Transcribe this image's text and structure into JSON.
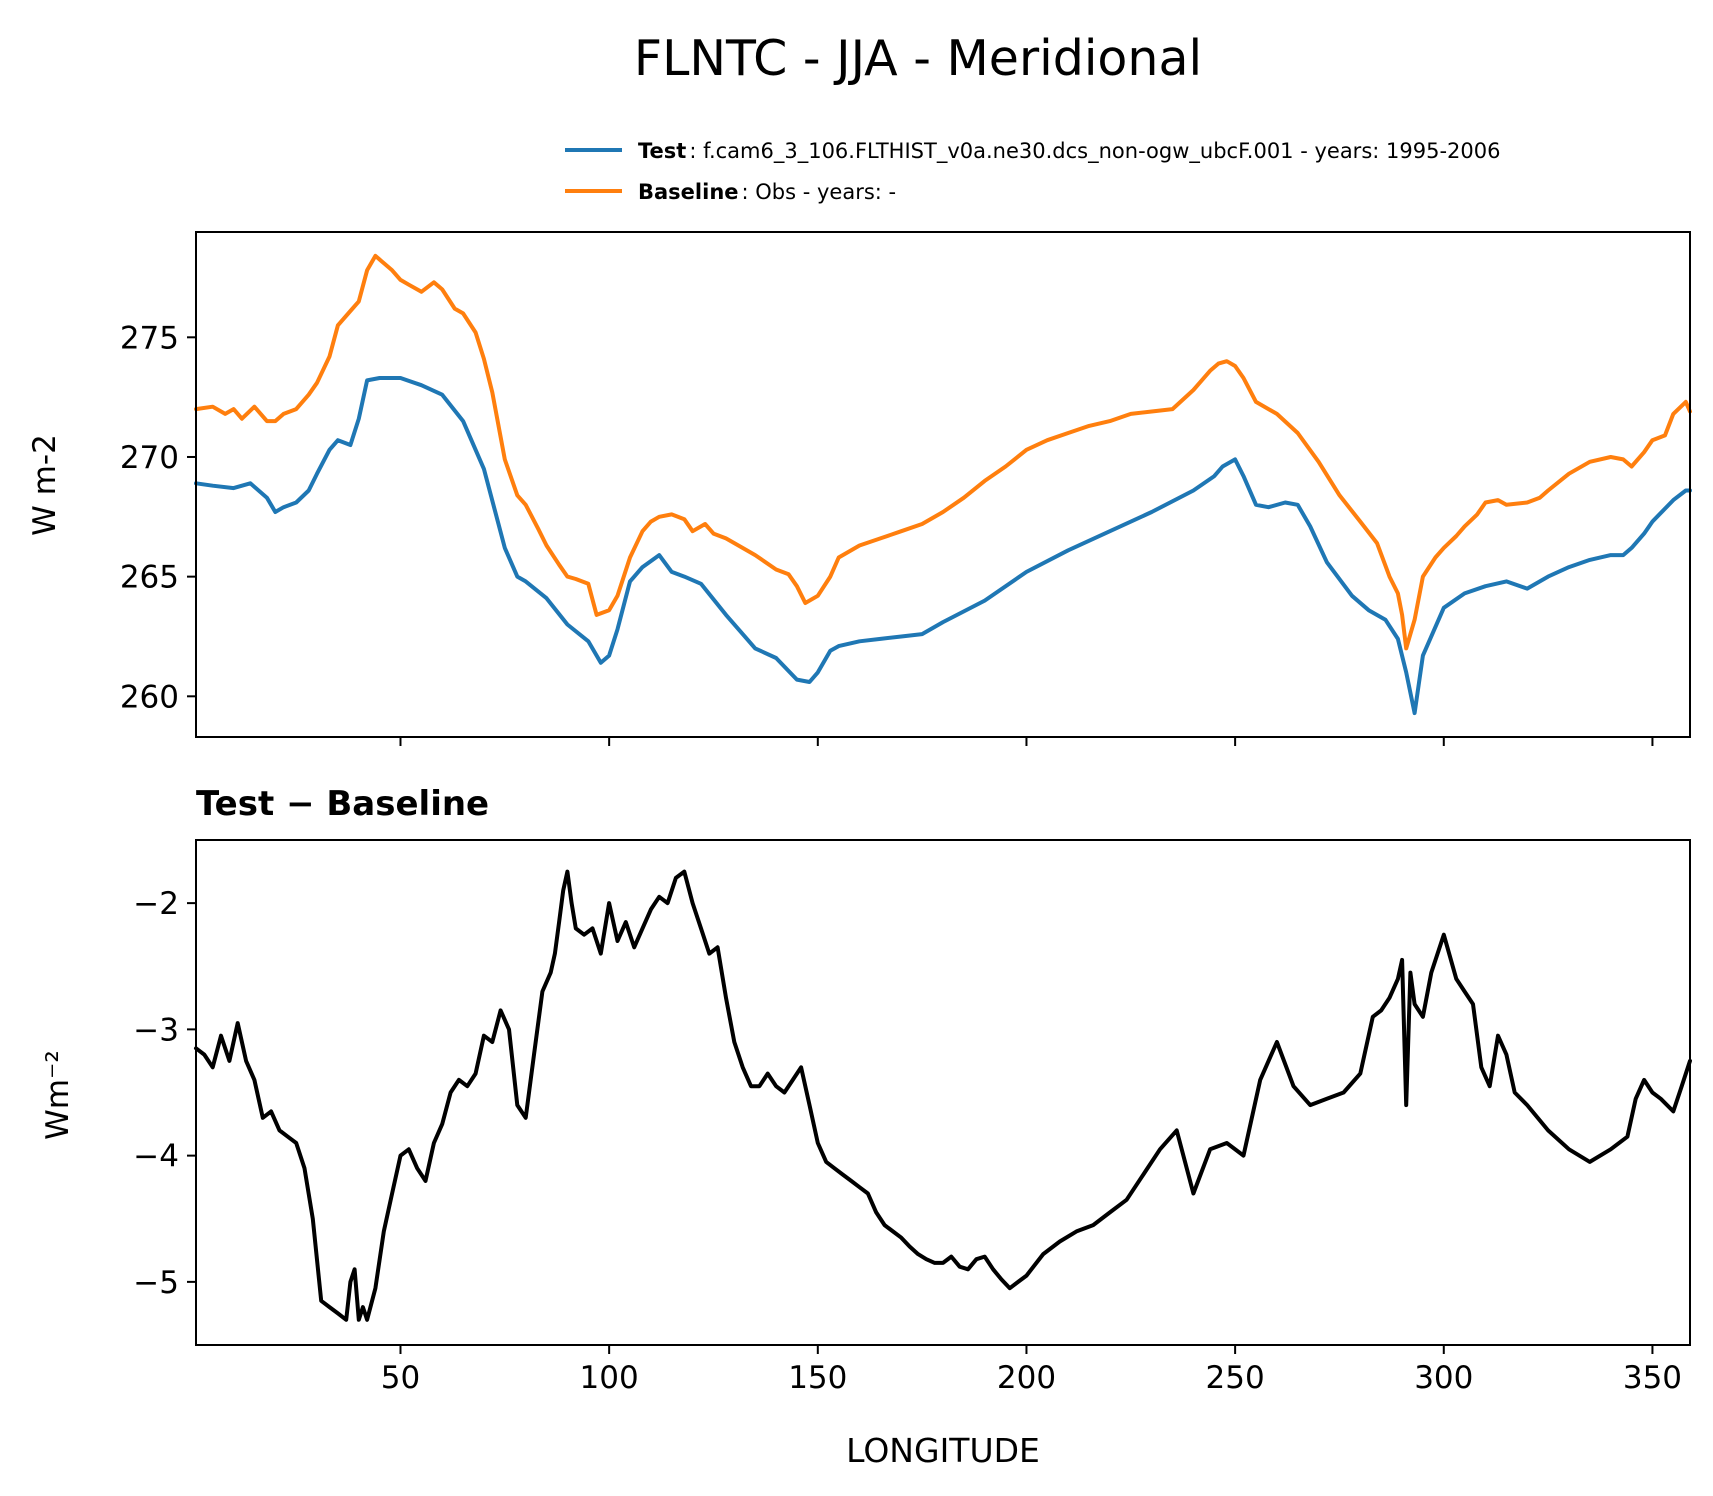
{
  "figure": {
    "title": "FLNTC - JJA - Meridional",
    "xlabel": "LONGITUDE"
  },
  "legend": {
    "test_key": "Test",
    "test_text": ": f.cam6_3_106.FLTHIST_v0a.ne30.dcs_non-ogw_ubcF.001 - years: 1995-2006",
    "base_key": "Baseline",
    "base_text": ": Obs - years: -"
  },
  "colors": {
    "test": "#1f77b4",
    "baseline": "#ff7f0e",
    "diff": "#000000"
  },
  "chart_data": [
    {
      "type": "line",
      "ylabel": "W m-2",
      "xlim": [
        1,
        359
      ],
      "ylim": [
        258.3,
        279.4
      ],
      "xticks": [
        50,
        100,
        150,
        200,
        250,
        300,
        350
      ],
      "yticks": [
        260,
        265,
        270,
        275
      ],
      "legend_position": "top-right above axes",
      "series": [
        {
          "name": "Test",
          "color": "#1f77b4",
          "x": [
            1,
            5,
            10,
            14,
            18,
            20,
            22,
            25,
            28,
            30,
            33,
            35,
            38,
            40,
            42,
            45,
            48,
            50,
            55,
            60,
            65,
            70,
            75,
            78,
            80,
            85,
            90,
            95,
            98,
            100,
            102,
            105,
            108,
            112,
            115,
            118,
            122,
            128,
            135,
            140,
            145,
            148,
            150,
            153,
            155,
            160,
            165,
            170,
            175,
            180,
            190,
            200,
            210,
            220,
            230,
            240,
            245,
            247,
            250,
            252,
            255,
            258,
            262,
            265,
            268,
            272,
            278,
            282,
            286,
            289,
            291,
            293,
            295,
            300,
            305,
            310,
            315,
            320,
            325,
            330,
            335,
            340,
            343,
            345,
            348,
            350,
            355,
            358,
            359
          ],
          "y": [
            268.9,
            268.8,
            268.7,
            268.9,
            268.3,
            267.7,
            267.9,
            268.1,
            268.6,
            269.3,
            270.3,
            270.7,
            270.5,
            271.6,
            273.2,
            273.3,
            273.3,
            273.3,
            273.0,
            272.6,
            271.5,
            269.5,
            266.2,
            265.0,
            264.8,
            264.1,
            263.0,
            262.3,
            261.4,
            261.7,
            262.8,
            264.8,
            265.4,
            265.9,
            265.2,
            265.0,
            264.7,
            263.4,
            262.0,
            261.6,
            260.7,
            260.6,
            261.0,
            261.9,
            262.1,
            262.3,
            262.4,
            262.5,
            262.6,
            263.1,
            264.0,
            265.2,
            266.1,
            266.9,
            267.7,
            268.6,
            269.2,
            269.6,
            269.9,
            269.2,
            268.0,
            267.9,
            268.1,
            268.0,
            267.1,
            265.6,
            264.2,
            263.6,
            263.2,
            262.4,
            261.0,
            259.3,
            261.7,
            263.7,
            264.3,
            264.6,
            264.8,
            264.5,
            265.0,
            265.4,
            265.7,
            265.9,
            265.9,
            266.2,
            266.8,
            267.3,
            268.2,
            268.6,
            268.6
          ]
        },
        {
          "name": "Baseline",
          "color": "#ff7f0e",
          "x": [
            1,
            5,
            8,
            10,
            12,
            15,
            18,
            20,
            22,
            25,
            28,
            30,
            33,
            35,
            38,
            40,
            42,
            44,
            46,
            48,
            50,
            52,
            55,
            58,
            60,
            63,
            65,
            68,
            70,
            72,
            75,
            78,
            80,
            83,
            85,
            88,
            90,
            92,
            95,
            97,
            100,
            102,
            105,
            108,
            110,
            112,
            115,
            118,
            120,
            123,
            125,
            128,
            130,
            135,
            140,
            143,
            145,
            147,
            150,
            153,
            155,
            160,
            165,
            170,
            175,
            180,
            185,
            190,
            195,
            200,
            205,
            210,
            215,
            220,
            225,
            230,
            235,
            240,
            244,
            246,
            248,
            250,
            252,
            255,
            260,
            265,
            270,
            275,
            280,
            284,
            287,
            289,
            290,
            291,
            293,
            295,
            298,
            300,
            303,
            305,
            308,
            310,
            313,
            315,
            320,
            323,
            325,
            330,
            335,
            340,
            343,
            345,
            348,
            350,
            353,
            355,
            358,
            359
          ],
          "y": [
            272.0,
            272.1,
            271.8,
            272.0,
            271.6,
            272.1,
            271.5,
            271.5,
            271.8,
            272.0,
            272.6,
            273.1,
            274.2,
            275.5,
            276.1,
            276.5,
            277.8,
            278.4,
            278.1,
            277.8,
            277.4,
            277.2,
            276.9,
            277.3,
            277.0,
            276.2,
            276.0,
            275.2,
            274.1,
            272.7,
            269.9,
            268.4,
            268.0,
            267.0,
            266.3,
            265.5,
            265.0,
            264.9,
            264.7,
            263.4,
            263.6,
            264.2,
            265.8,
            266.9,
            267.3,
            267.5,
            267.6,
            267.4,
            266.9,
            267.2,
            266.8,
            266.6,
            266.4,
            265.9,
            265.3,
            265.1,
            264.6,
            263.9,
            264.2,
            265.0,
            265.8,
            266.3,
            266.6,
            266.9,
            267.2,
            267.7,
            268.3,
            269.0,
            269.6,
            270.3,
            270.7,
            271.0,
            271.3,
            271.5,
            271.8,
            271.9,
            272.0,
            272.8,
            273.6,
            273.9,
            274.0,
            273.8,
            273.3,
            272.3,
            271.8,
            271.0,
            269.8,
            268.4,
            267.3,
            266.4,
            265.0,
            264.3,
            263.4,
            262.0,
            263.2,
            265.0,
            265.8,
            266.2,
            266.7,
            267.1,
            267.6,
            268.1,
            268.2,
            268.0,
            268.1,
            268.3,
            268.6,
            269.3,
            269.8,
            270.0,
            269.9,
            269.6,
            270.2,
            270.7,
            270.9,
            271.8,
            272.3,
            271.9
          ]
        }
      ]
    },
    {
      "type": "line",
      "title": "Test − Baseline",
      "ylabel": "Wm⁻²",
      "xlabel": "LONGITUDE",
      "xlim": [
        1,
        359
      ],
      "ylim": [
        -5.5,
        -1.5
      ],
      "xticks": [
        50,
        100,
        150,
        200,
        250,
        300,
        350
      ],
      "yticks": [
        -5,
        -4,
        -3,
        -2
      ],
      "series": [
        {
          "color": "#000000",
          "x": [
            1,
            3,
            5,
            7,
            9,
            11,
            13,
            15,
            17,
            19,
            21,
            23,
            25,
            27,
            29,
            31,
            33,
            35,
            37,
            38,
            39,
            40,
            41,
            42,
            44,
            46,
            48,
            50,
            52,
            54,
            56,
            58,
            60,
            62,
            64,
            66,
            68,
            70,
            72,
            74,
            76,
            78,
            80,
            82,
            84,
            86,
            87,
            88,
            89,
            90,
            91,
            92,
            94,
            96,
            98,
            100,
            102,
            104,
            106,
            108,
            110,
            112,
            114,
            116,
            118,
            120,
            122,
            124,
            126,
            128,
            130,
            132,
            134,
            136,
            138,
            140,
            142,
            144,
            146,
            148,
            150,
            152,
            154,
            156,
            158,
            160,
            162,
            164,
            166,
            168,
            170,
            172,
            174,
            176,
            178,
            180,
            182,
            184,
            186,
            188,
            190,
            192,
            194,
            196,
            198,
            200,
            204,
            208,
            212,
            216,
            220,
            224,
            228,
            232,
            236,
            240,
            244,
            248,
            252,
            256,
            260,
            264,
            268,
            272,
            276,
            280,
            283,
            285,
            287,
            289,
            290,
            291,
            292,
            293,
            295,
            297,
            300,
            303,
            305,
            307,
            309,
            311,
            313,
            315,
            317,
            320,
            325,
            330,
            335,
            340,
            344,
            346,
            348,
            350,
            352,
            355,
            357,
            359
          ],
          "y": [
            -3.15,
            -3.2,
            -3.3,
            -3.05,
            -3.25,
            -2.95,
            -3.25,
            -3.4,
            -3.7,
            -3.65,
            -3.8,
            -3.85,
            -3.9,
            -4.1,
            -4.5,
            -5.15,
            -5.2,
            -5.25,
            -5.3,
            -5.0,
            -4.9,
            -5.3,
            -5.2,
            -5.3,
            -5.05,
            -4.6,
            -4.3,
            -4.0,
            -3.95,
            -4.1,
            -4.2,
            -3.9,
            -3.75,
            -3.5,
            -3.4,
            -3.45,
            -3.35,
            -3.05,
            -3.1,
            -2.85,
            -3.0,
            -3.6,
            -3.7,
            -3.2,
            -2.7,
            -2.55,
            -2.4,
            -2.15,
            -1.9,
            -1.75,
            -2.0,
            -2.2,
            -2.25,
            -2.2,
            -2.4,
            -2.0,
            -2.3,
            -2.15,
            -2.35,
            -2.2,
            -2.05,
            -1.95,
            -2.0,
            -1.8,
            -1.75,
            -2.0,
            -2.2,
            -2.4,
            -2.35,
            -2.75,
            -3.1,
            -3.3,
            -3.45,
            -3.45,
            -3.35,
            -3.45,
            -3.5,
            -3.4,
            -3.3,
            -3.6,
            -3.9,
            -4.05,
            -4.1,
            -4.15,
            -4.2,
            -4.25,
            -4.3,
            -4.45,
            -4.55,
            -4.6,
            -4.65,
            -4.72,
            -4.78,
            -4.82,
            -4.85,
            -4.85,
            -4.8,
            -4.88,
            -4.9,
            -4.82,
            -4.8,
            -4.9,
            -4.98,
            -5.05,
            -5.0,
            -4.95,
            -4.78,
            -4.68,
            -4.6,
            -4.55,
            -4.45,
            -4.35,
            -4.15,
            -3.95,
            -3.8,
            -4.3,
            -3.95,
            -3.9,
            -4.0,
            -3.4,
            -3.1,
            -3.45,
            -3.6,
            -3.55,
            -3.5,
            -3.35,
            -2.9,
            -2.85,
            -2.75,
            -2.6,
            -2.45,
            -3.6,
            -2.55,
            -2.8,
            -2.9,
            -2.55,
            -2.25,
            -2.6,
            -2.7,
            -2.8,
            -3.3,
            -3.45,
            -3.05,
            -3.2,
            -3.5,
            -3.6,
            -3.8,
            -3.95,
            -4.05,
            -3.95,
            -3.85,
            -3.55,
            -3.4,
            -3.5,
            -3.55,
            -3.65,
            -3.45,
            -3.25
          ]
        }
      ]
    }
  ]
}
